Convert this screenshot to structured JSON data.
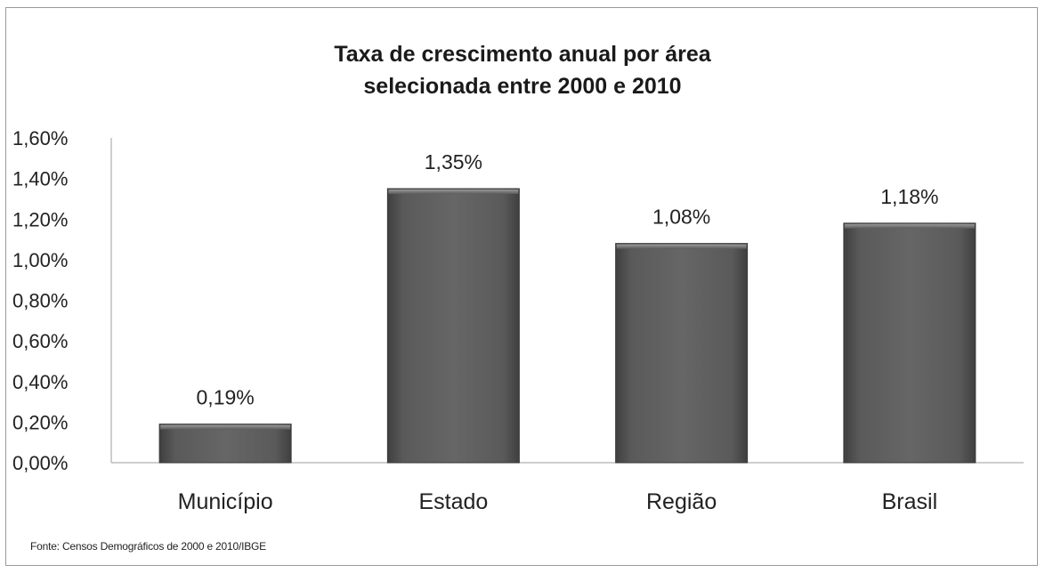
{
  "title_line1": "Taxa de crescimento anual por área",
  "title_line2": "selecionada entre 2000 e 2010",
  "source": "Fonte: Censos Demográficos de 2000 e 2010/IBGE",
  "chart_data": {
    "type": "bar",
    "title": "Taxa de crescimento anual por área selecionada entre 2000 e 2010",
    "categories": [
      "Município",
      "Estado",
      "Região",
      "Brasil"
    ],
    "values": [
      0.19,
      1.35,
      1.08,
      1.18
    ],
    "data_labels": [
      "0,19%",
      "1,35%",
      "1,08%",
      "1,18%"
    ],
    "ylim": [
      0,
      1.6
    ],
    "yticks": [
      0,
      0.2,
      0.4,
      0.6,
      0.8,
      1.0,
      1.2,
      1.4,
      1.6
    ],
    "ytick_labels": [
      "0,00%",
      "0,20%",
      "0,40%",
      "0,60%",
      "0,80%",
      "1,00%",
      "1,20%",
      "1,40%",
      "1,60%"
    ],
    "xlabel": "",
    "ylabel": "",
    "grid": false,
    "legend": "none",
    "bar_color": "#595959"
  }
}
